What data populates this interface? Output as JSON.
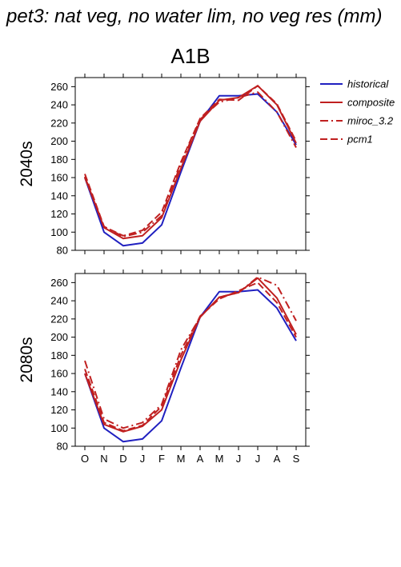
{
  "title": "pet3: nat veg, no water lim, no veg res (mm)",
  "scenario": "A1B",
  "colors": {
    "historical": "#2020c0",
    "future": "#c02020"
  },
  "legend": [
    {
      "label": "historical",
      "dash": "solid",
      "color": "#2020c0"
    },
    {
      "label": "composite",
      "dash": "solid",
      "color": "#c02020"
    },
    {
      "label": "miroc_3.2",
      "dash": "dashdot",
      "color": "#c02020"
    },
    {
      "label": "pcm1",
      "dash": "dash",
      "color": "#c02020"
    }
  ],
  "chart_data": [
    {
      "type": "line",
      "row_label": "2040s",
      "panel_title": "A1B",
      "categories": [
        "O",
        "N",
        "D",
        "J",
        "F",
        "M",
        "A",
        "M",
        "J",
        "J",
        "A",
        "S"
      ],
      "yticks": [
        80,
        100,
        120,
        140,
        160,
        180,
        200,
        220,
        240,
        260
      ],
      "ylim": [
        80,
        270
      ],
      "series": [
        {
          "name": "historical",
          "dash": "solid",
          "color": "#2020c0",
          "values": [
            160,
            100,
            85,
            88,
            108,
            166,
            222,
            250,
            250,
            252,
            232,
            196
          ]
        },
        {
          "name": "composite",
          "dash": "solid",
          "color": "#c02020",
          "values": [
            161,
            105,
            93,
            96,
            116,
            170,
            222,
            245,
            248,
            261,
            240,
            198
          ]
        },
        {
          "name": "miroc_3.2",
          "dash": "dashdot",
          "color": "#c02020",
          "values": [
            160,
            106,
            95,
            100,
            118,
            175,
            224,
            243,
            248,
            254,
            232,
            193
          ]
        },
        {
          "name": "pcm1",
          "dash": "dash",
          "color": "#c02020",
          "values": [
            164,
            106,
            96,
            102,
            122,
            177,
            225,
            246,
            245,
            261,
            241,
            200
          ]
        }
      ]
    },
    {
      "type": "line",
      "row_label": "2080s",
      "categories": [
        "O",
        "N",
        "D",
        "J",
        "F",
        "M",
        "A",
        "M",
        "J",
        "J",
        "A",
        "S"
      ],
      "yticks": [
        80,
        100,
        120,
        140,
        160,
        180,
        200,
        220,
        240,
        260
      ],
      "ylim": [
        80,
        270
      ],
      "series": [
        {
          "name": "historical",
          "dash": "solid",
          "color": "#2020c0",
          "values": [
            160,
            100,
            85,
            88,
            108,
            166,
            222,
            250,
            250,
            252,
            232,
            196
          ]
        },
        {
          "name": "composite",
          "dash": "solid",
          "color": "#c02020",
          "values": [
            160,
            104,
            96,
            102,
            120,
            175,
            222,
            244,
            249,
            265,
            243,
            203
          ]
        },
        {
          "name": "miroc_3.2",
          "dash": "dashdot",
          "color": "#c02020",
          "values": [
            174,
            110,
            100,
            106,
            126,
            186,
            222,
            244,
            249,
            266,
            257,
            218
          ]
        },
        {
          "name": "pcm1",
          "dash": "dash",
          "color": "#c02020",
          "values": [
            165,
            106,
            97,
            103,
            124,
            180,
            223,
            242,
            251,
            260,
            238,
            200
          ]
        }
      ]
    }
  ]
}
